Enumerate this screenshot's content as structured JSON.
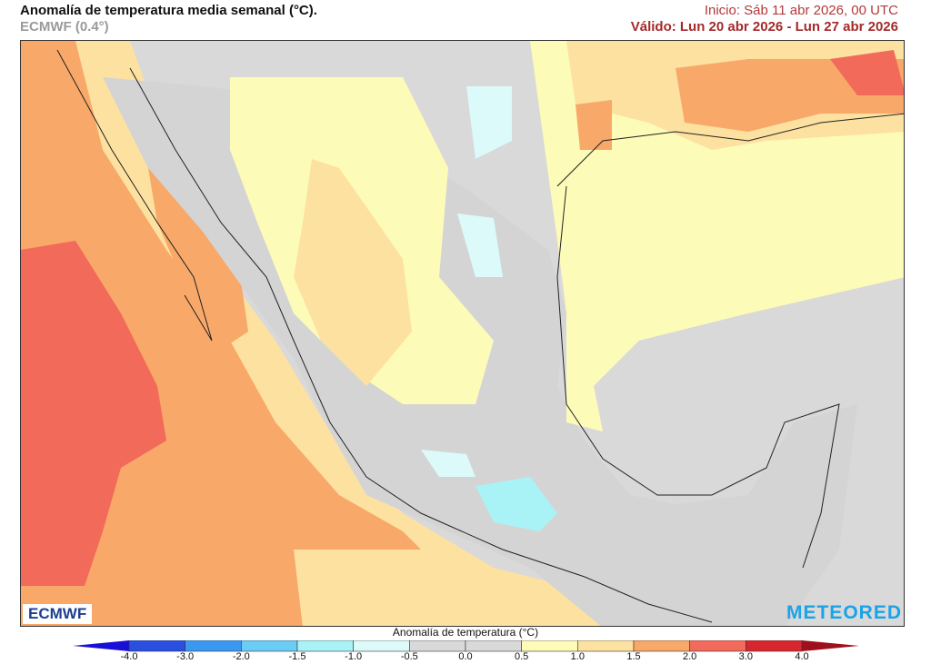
{
  "header": {
    "title": "Anomalía de temperatura media semanal (°C).",
    "model": "ECMWF (0.4°)",
    "init": "Inicio: Sáb 11 abr 2026, 00 UTC",
    "valid": "Válido: Lun 20 abr 2026 - Lun 27 abr 2026"
  },
  "logos": {
    "left": "ECMWF",
    "right": "METEORED"
  },
  "colorbar": {
    "label": "Anomalía de temperatura (°C)",
    "ticks": [
      "-4.0",
      "-3.0",
      "-2.0",
      "-1.5",
      "-1.0",
      "-0.5",
      "0.0",
      "0.5",
      "1.0",
      "1.5",
      "2.0",
      "3.0",
      "4.0"
    ],
    "colors": [
      "#2a4fe0",
      "#3b98f0",
      "#6bcdf5",
      "#a9f3f7",
      "#dcfafa",
      "#d9d9d9",
      "#d9d9d9",
      "#fdfbb8",
      "#fde1a0",
      "#f8a868",
      "#f26a5a",
      "#d8262e"
    ],
    "under_color": "#1a0fd6",
    "over_color": "#a0101c"
  }
}
